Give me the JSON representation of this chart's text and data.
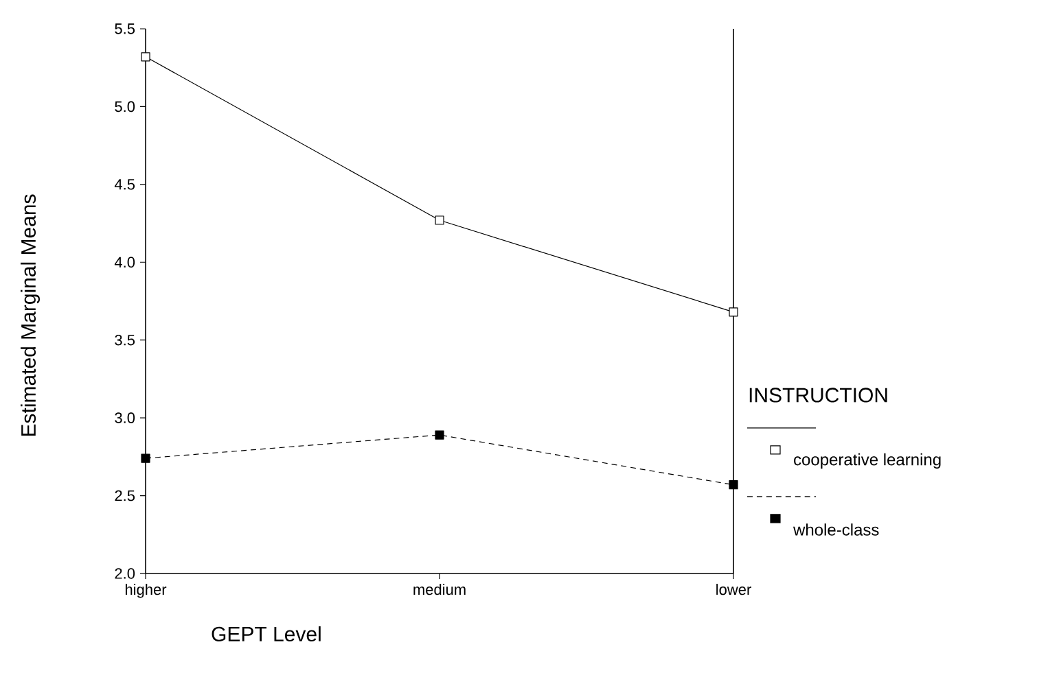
{
  "chart_data": {
    "type": "line",
    "xlabel": "GEPT Level",
    "ylabel": "Estimated Marginal Means",
    "legend_title": "INSTRUCTION",
    "categories": [
      "higher",
      "medium",
      "lower"
    ],
    "series": [
      {
        "name": "cooperative learning",
        "color": "#000000",
        "values": [
          5.32,
          4.27,
          3.68
        ],
        "line_style": "solid"
      },
      {
        "name": "whole-class",
        "color": "#000000",
        "values": [
          2.74,
          2.89,
          2.57
        ],
        "line_style": "dashed"
      }
    ],
    "ylim": [
      2.0,
      5.5
    ],
    "yticks": [
      {
        "value": 2.0,
        "label": "2.0"
      },
      {
        "value": 2.5,
        "label": "2.5"
      },
      {
        "value": 3.0,
        "label": "3.0"
      },
      {
        "value": 3.5,
        "label": "3.5"
      },
      {
        "value": 4.0,
        "label": "4.0"
      },
      {
        "value": 4.5,
        "label": "4.5"
      },
      {
        "value": 5.0,
        "label": "5.0"
      },
      {
        "value": 5.5,
        "label": "5.5"
      }
    ],
    "marker": "square",
    "grid": false,
    "legend": "right"
  }
}
